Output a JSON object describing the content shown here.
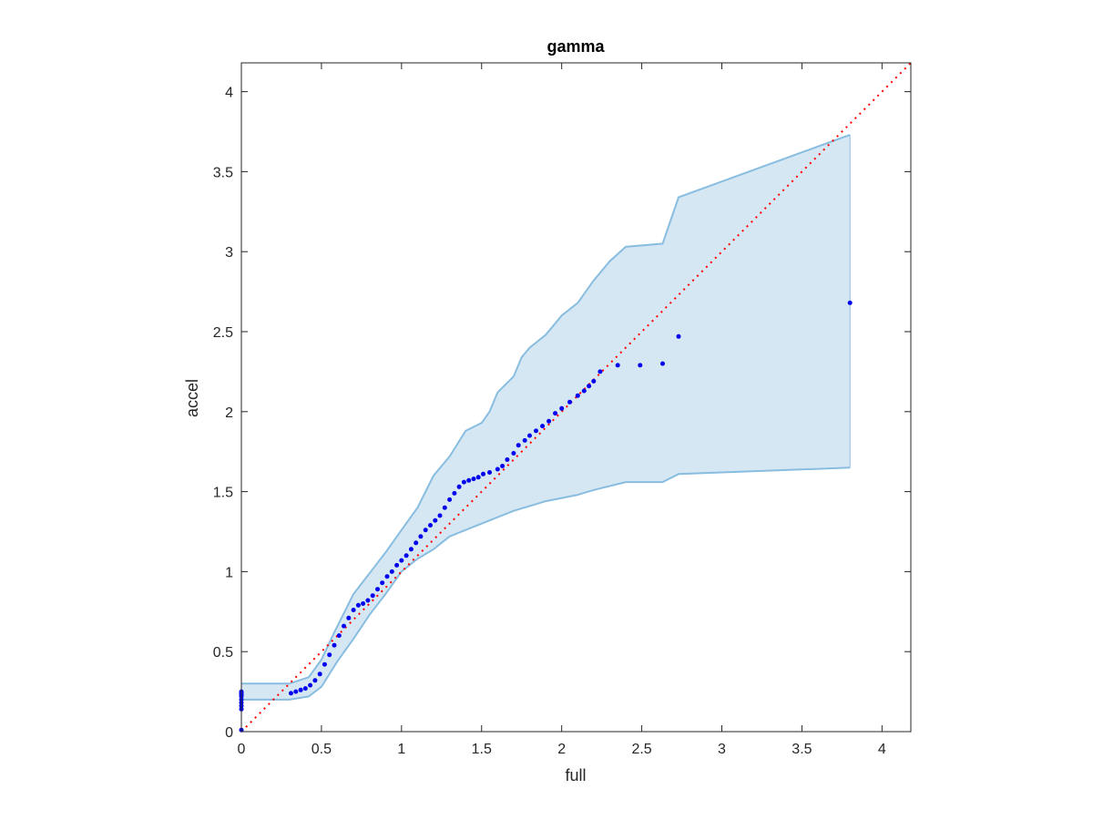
{
  "chart_data": {
    "type": "scatter",
    "title": "gamma",
    "xlabel": "full",
    "ylabel": "accel",
    "xlim": [
      0,
      4.18
    ],
    "ylim": [
      0,
      4.18
    ],
    "xticks": [
      0,
      0.5,
      1,
      1.5,
      2,
      2.5,
      3,
      3.5,
      4
    ],
    "yticks": [
      0,
      0.5,
      1,
      1.5,
      2,
      2.5,
      3,
      3.5,
      4
    ],
    "xtick_labels": [
      "0",
      "0.5",
      "1",
      "1.5",
      "2",
      "2.5",
      "3",
      "3.5",
      "4"
    ],
    "ytick_labels": [
      "0",
      "0.5",
      "1",
      "1.5",
      "2",
      "2.5",
      "3",
      "3.5",
      "4"
    ],
    "grid": false,
    "box": true,
    "colors": {
      "points": "#0000ee",
      "band_fill": "#d6e7f4",
      "band_edge": "#88bde0",
      "reference_line": "#ff0000",
      "axes": "#262626"
    },
    "reference_line": {
      "style": "dotted",
      "x": [
        0,
        4.18
      ],
      "y": [
        0,
        4.18
      ]
    },
    "confidence_band": {
      "upper": [
        [
          0,
          0.3
        ],
        [
          0.3,
          0.3
        ],
        [
          0.42,
          0.34
        ],
        [
          0.5,
          0.45
        ],
        [
          0.58,
          0.62
        ],
        [
          0.7,
          0.86
        ],
        [
          0.8,
          0.99
        ],
        [
          0.9,
          1.12
        ],
        [
          1.0,
          1.26
        ],
        [
          1.1,
          1.4
        ],
        [
          1.2,
          1.6
        ],
        [
          1.3,
          1.72
        ],
        [
          1.4,
          1.88
        ],
        [
          1.5,
          1.93
        ],
        [
          1.55,
          2.0
        ],
        [
          1.6,
          2.12
        ],
        [
          1.7,
          2.22
        ],
        [
          1.75,
          2.34
        ],
        [
          1.8,
          2.4
        ],
        [
          1.9,
          2.48
        ],
        [
          2.0,
          2.6
        ],
        [
          2.1,
          2.68
        ],
        [
          2.2,
          2.82
        ],
        [
          2.3,
          2.94
        ],
        [
          2.4,
          3.03
        ],
        [
          2.63,
          3.05
        ],
        [
          2.73,
          3.34
        ],
        [
          3.8,
          3.73
        ]
      ],
      "lower": [
        [
          0,
          0.2
        ],
        [
          0.3,
          0.2
        ],
        [
          0.42,
          0.22
        ],
        [
          0.5,
          0.28
        ],
        [
          0.6,
          0.44
        ],
        [
          0.7,
          0.58
        ],
        [
          0.8,
          0.73
        ],
        [
          0.9,
          0.86
        ],
        [
          1.0,
          1.0
        ],
        [
          1.1,
          1.08
        ],
        [
          1.2,
          1.14
        ],
        [
          1.3,
          1.22
        ],
        [
          1.4,
          1.26
        ],
        [
          1.5,
          1.3
        ],
        [
          1.6,
          1.34
        ],
        [
          1.7,
          1.38
        ],
        [
          1.8,
          1.41
        ],
        [
          1.9,
          1.44
        ],
        [
          2.0,
          1.46
        ],
        [
          2.1,
          1.48
        ],
        [
          2.2,
          1.51
        ],
        [
          2.4,
          1.56
        ],
        [
          2.63,
          1.56
        ],
        [
          2.73,
          1.61
        ],
        [
          3.8,
          1.65
        ]
      ]
    },
    "series": [
      {
        "x": [
          0,
          0,
          0,
          0,
          0,
          0,
          0,
          0,
          0,
          0.31,
          0.34,
          0.37,
          0.4,
          0.43,
          0.46,
          0.49,
          0.52,
          0.55,
          0.58,
          0.61,
          0.64,
          0.67,
          0.7,
          0.73,
          0.76,
          0.79,
          0.82,
          0.85,
          0.88,
          0.91,
          0.94,
          0.97,
          1.0,
          1.03,
          1.06,
          1.09,
          1.12,
          1.15,
          1.18,
          1.21,
          1.24,
          1.27,
          1.3,
          1.33,
          1.36,
          1.39,
          1.42,
          1.45,
          1.48,
          1.51,
          1.55,
          1.6,
          1.63,
          1.66,
          1.7,
          1.73,
          1.77,
          1.8,
          1.84,
          1.88,
          1.92,
          1.96,
          2.0,
          2.05,
          2.1,
          2.14,
          2.17,
          2.2,
          2.24,
          2.35,
          2.49,
          2.63,
          2.73,
          3.8
        ],
        "y": [
          0.01,
          0.14,
          0.16,
          0.18,
          0.2,
          0.22,
          0.23,
          0.24,
          0.25,
          0.24,
          0.25,
          0.26,
          0.27,
          0.29,
          0.32,
          0.36,
          0.42,
          0.48,
          0.54,
          0.6,
          0.66,
          0.71,
          0.76,
          0.79,
          0.8,
          0.82,
          0.85,
          0.89,
          0.93,
          0.97,
          1.0,
          1.04,
          1.07,
          1.1,
          1.14,
          1.18,
          1.22,
          1.26,
          1.29,
          1.32,
          1.35,
          1.4,
          1.45,
          1.49,
          1.53,
          1.56,
          1.57,
          1.58,
          1.59,
          1.61,
          1.62,
          1.64,
          1.66,
          1.7,
          1.74,
          1.79,
          1.82,
          1.85,
          1.88,
          1.91,
          1.94,
          1.99,
          2.02,
          2.06,
          2.1,
          2.13,
          2.16,
          2.19,
          2.25,
          2.29,
          2.29,
          2.3,
          2.47,
          2.68
        ]
      }
    ]
  }
}
